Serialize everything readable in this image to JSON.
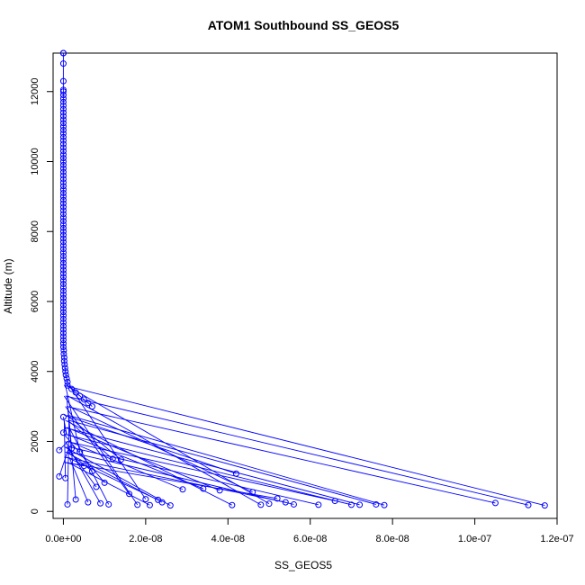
{
  "chart_data": {
    "type": "line",
    "title": "ATOM1 Southbound SS_GEOS5",
    "xlabel": "SS_GEOS5",
    "ylabel": "Altitude (m)",
    "xlim": [
      -2.5e-09,
      1.2e-07
    ],
    "ylim": [
      -200,
      13100
    ],
    "x_ticks": [
      0,
      2e-08,
      4e-08,
      6e-08,
      8e-08,
      1e-07,
      1.2e-07
    ],
    "x_tick_labels": [
      "0.0e+00",
      "2.0e-08",
      "4.0e-08",
      "6.0e-08",
      "8.0e-08",
      "1.0e-07",
      "1.2e-07"
    ],
    "y_ticks": [
      0,
      2000,
      4000,
      6000,
      8000,
      10000,
      12000
    ],
    "y_tick_labels": [
      "0",
      "2000",
      "4000",
      "6000",
      "8000",
      "10000",
      "12000"
    ],
    "color": "#0000ff",
    "markers": "open-circle",
    "grid": false,
    "series": [
      {
        "x": [
          0,
          0,
          0,
          0,
          0,
          0,
          0,
          0,
          0,
          0,
          0,
          0,
          0,
          0,
          0,
          0,
          0,
          0,
          0,
          0,
          0,
          0,
          0,
          0,
          0,
          0,
          0,
          0,
          0,
          0,
          0,
          0,
          0,
          0,
          0,
          0,
          0,
          0,
          0,
          0,
          0,
          0,
          0,
          0,
          0,
          0,
          0,
          0,
          0,
          0,
          0,
          0,
          0,
          0,
          0,
          0,
          0,
          0,
          0,
          0,
          0,
          0,
          0,
          0,
          0,
          0,
          0,
          0,
          0,
          0,
          0,
          0,
          0,
          0,
          0,
          0,
          0,
          0,
          0,
          1e-10,
          1e-10,
          2e-10,
          2e-10,
          3e-10,
          4e-10,
          5e-10,
          6e-10,
          8e-10,
          1e-09,
          1e-09,
          2e-09,
          3e-09,
          4e-09,
          5e-09,
          6e-09,
          7e-09
        ],
        "y": [
          13100,
          13100,
          12800,
          12300,
          12050,
          12000,
          11900,
          11800,
          11700,
          11600,
          11500,
          11400,
          11300,
          11200,
          11100,
          11000,
          10900,
          10800,
          10700,
          10600,
          10500,
          10400,
          10300,
          10200,
          10100,
          10000,
          9900,
          9800,
          9700,
          9600,
          9500,
          9400,
          9300,
          9200,
          9100,
          9000,
          8900,
          8800,
          8700,
          8600,
          8500,
          8400,
          8300,
          8200,
          8100,
          8000,
          7900,
          7800,
          7700,
          7600,
          7500,
          7400,
          7300,
          7200,
          7100,
          7000,
          6900,
          6800,
          6700,
          6600,
          6500,
          6400,
          6300,
          6200,
          6100,
          6000,
          5900,
          5800,
          5700,
          5600,
          5500,
          5400,
          5300,
          5200,
          5100,
          5000,
          4900,
          4800,
          4700,
          4600,
          4500,
          4400,
          4300,
          4200,
          4100,
          4000,
          3900,
          3800,
          3700,
          3600,
          3500,
          3400,
          3300,
          3200,
          3100,
          3000
        ]
      }
    ],
    "low_level_points": [
      [
        1.17e-07,
        170
      ],
      [
        1.13e-07,
        180
      ],
      [
        1.05e-07,
        240
      ],
      [
        7.8e-08,
        180
      ],
      [
        7.6e-08,
        200
      ],
      [
        7.2e-08,
        190
      ],
      [
        7e-08,
        190
      ],
      [
        6.6e-08,
        300
      ],
      [
        6.2e-08,
        190
      ],
      [
        5.6e-08,
        200
      ],
      [
        5.4e-08,
        260
      ],
      [
        5.2e-08,
        370
      ],
      [
        5e-08,
        220
      ],
      [
        4.8e-08,
        190
      ],
      [
        4.6e-08,
        550
      ],
      [
        4.2e-08,
        1080
      ],
      [
        4.1e-08,
        180
      ],
      [
        3.8e-08,
        600
      ],
      [
        3.4e-08,
        650
      ],
      [
        2.9e-08,
        630
      ],
      [
        2.6e-08,
        170
      ],
      [
        2.4e-08,
        260
      ],
      [
        2.3e-08,
        330
      ],
      [
        2.1e-08,
        180
      ],
      [
        2e-08,
        350
      ],
      [
        1.8e-08,
        190
      ],
      [
        1.6e-08,
        500
      ],
      [
        1.4e-08,
        1480
      ],
      [
        1.2e-08,
        1500
      ],
      [
        1.1e-08,
        200
      ],
      [
        1e-08,
        820
      ],
      [
        9e-09,
        230
      ],
      [
        8e-09,
        700
      ],
      [
        7e-09,
        1150
      ],
      [
        6e-09,
        260
      ],
      [
        5e-09,
        1300
      ],
      [
        4e-09,
        1700
      ],
      [
        3e-09,
        340
      ],
      [
        2e-09,
        1800
      ],
      [
        1e-09,
        200
      ],
      [
        5e-10,
        950
      ],
      [
        0,
        2250
      ],
      [
        0,
        2700
      ],
      [
        -1e-09,
        1750
      ],
      [
        -1e-09,
        1000
      ]
    ]
  }
}
